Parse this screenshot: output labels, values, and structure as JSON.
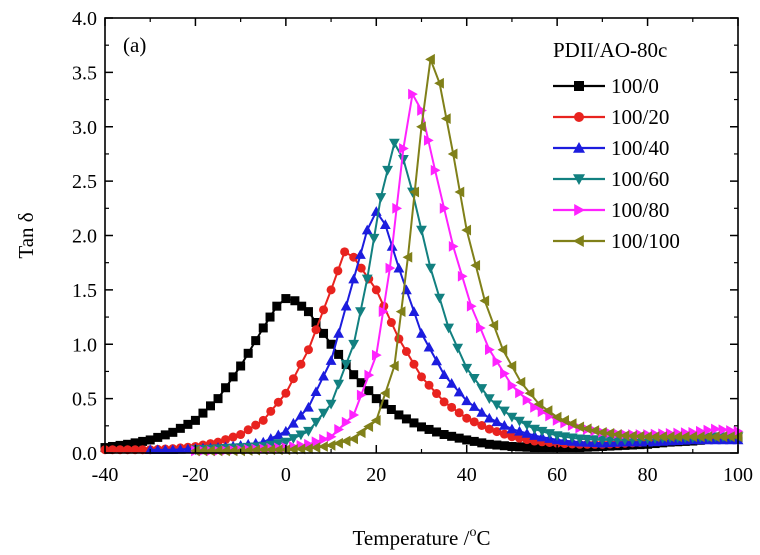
{
  "chart_data": {
    "type": "line",
    "panel_label": "(a)",
    "xlabel_main": "Temperature /",
    "xlabel_sup": "o",
    "xlabel_unit": "C",
    "ylabel": "Tan δ",
    "xlim": [
      -40,
      100
    ],
    "ylim": [
      0,
      4.0
    ],
    "x_ticks": [
      -40,
      -20,
      0,
      20,
      40,
      60,
      80,
      100
    ],
    "x_tick_labels": [
      "-40",
      "-20",
      "0",
      "20",
      "40",
      "60",
      "80",
      "100"
    ],
    "y_ticks": [
      0,
      0.5,
      1.0,
      1.5,
      2.0,
      2.5,
      3.0,
      3.5,
      4.0
    ],
    "y_tick_labels": [
      "0.0",
      "0.5",
      "1.0",
      "1.5",
      "2.0",
      "2.5",
      "3.0",
      "3.5",
      "4.0"
    ],
    "grid": false,
    "legend": {
      "title": "PDII/AO-80c",
      "position": "top-right"
    },
    "series": [
      {
        "name": "100/0",
        "color": "#000000",
        "marker": "square",
        "points": [
          [
            -40,
            0.05
          ],
          [
            -35,
            0.08
          ],
          [
            -30,
            0.12
          ],
          [
            -25,
            0.19
          ],
          [
            -20,
            0.3
          ],
          [
            -15,
            0.5
          ],
          [
            -10,
            0.8
          ],
          [
            -5,
            1.15
          ],
          [
            -2,
            1.35
          ],
          [
            0,
            1.42
          ],
          [
            2,
            1.4
          ],
          [
            5,
            1.3
          ],
          [
            10,
            1.0
          ],
          [
            15,
            0.72
          ],
          [
            20,
            0.5
          ],
          [
            25,
            0.35
          ],
          [
            30,
            0.24
          ],
          [
            35,
            0.17
          ],
          [
            40,
            0.12
          ],
          [
            45,
            0.08
          ],
          [
            50,
            0.06
          ],
          [
            55,
            0.05
          ],
          [
            60,
            0.05
          ],
          [
            65,
            0.05
          ],
          [
            70,
            0.06
          ],
          [
            75,
            0.07
          ],
          [
            80,
            0.08
          ],
          [
            85,
            0.1
          ],
          [
            90,
            0.11
          ],
          [
            95,
            0.13
          ],
          [
            100,
            0.14
          ]
        ]
      },
      {
        "name": "100/20",
        "color": "#e8231f",
        "marker": "circle",
        "points": [
          [
            -40,
            0.03
          ],
          [
            -35,
            0.03
          ],
          [
            -30,
            0.03
          ],
          [
            -25,
            0.04
          ],
          [
            -20,
            0.06
          ],
          [
            -15,
            0.1
          ],
          [
            -10,
            0.17
          ],
          [
            -5,
            0.3
          ],
          [
            0,
            0.55
          ],
          [
            5,
            0.95
          ],
          [
            10,
            1.5
          ],
          [
            13,
            1.85
          ],
          [
            15,
            1.8
          ],
          [
            20,
            1.5
          ],
          [
            25,
            1.05
          ],
          [
            30,
            0.7
          ],
          [
            35,
            0.47
          ],
          [
            40,
            0.32
          ],
          [
            45,
            0.22
          ],
          [
            50,
            0.15
          ],
          [
            55,
            0.11
          ],
          [
            60,
            0.09
          ],
          [
            65,
            0.08
          ],
          [
            70,
            0.08
          ],
          [
            75,
            0.09
          ],
          [
            80,
            0.1
          ],
          [
            85,
            0.12
          ],
          [
            90,
            0.13
          ],
          [
            95,
            0.14
          ],
          [
            100,
            0.16
          ]
        ]
      },
      {
        "name": "100/40",
        "color": "#1c1cde",
        "marker": "triangle-up",
        "points": [
          [
            -30,
            0.03
          ],
          [
            -25,
            0.03
          ],
          [
            -20,
            0.04
          ],
          [
            -15,
            0.05
          ],
          [
            -10,
            0.07
          ],
          [
            -5,
            0.1
          ],
          [
            0,
            0.2
          ],
          [
            5,
            0.42
          ],
          [
            10,
            0.85
          ],
          [
            15,
            1.6
          ],
          [
            18,
            2.05
          ],
          [
            20,
            2.22
          ],
          [
            22,
            2.1
          ],
          [
            25,
            1.7
          ],
          [
            30,
            1.1
          ],
          [
            35,
            0.72
          ],
          [
            40,
            0.48
          ],
          [
            45,
            0.32
          ],
          [
            50,
            0.22
          ],
          [
            55,
            0.16
          ],
          [
            60,
            0.12
          ],
          [
            65,
            0.1
          ],
          [
            70,
            0.09
          ],
          [
            75,
            0.1
          ],
          [
            80,
            0.1
          ],
          [
            85,
            0.11
          ],
          [
            90,
            0.12
          ],
          [
            95,
            0.12
          ],
          [
            100,
            0.12
          ]
        ]
      },
      {
        "name": "100/60",
        "color": "#128080",
        "marker": "triangle-down",
        "points": [
          [
            -20,
            0.03
          ],
          [
            -15,
            0.04
          ],
          [
            -10,
            0.05
          ],
          [
            -5,
            0.06
          ],
          [
            0,
            0.1
          ],
          [
            5,
            0.2
          ],
          [
            10,
            0.45
          ],
          [
            15,
            1.0
          ],
          [
            18,
            1.6
          ],
          [
            21,
            2.35
          ],
          [
            24,
            2.85
          ],
          [
            26,
            2.7
          ],
          [
            28,
            2.4
          ],
          [
            32,
            1.7
          ],
          [
            36,
            1.15
          ],
          [
            40,
            0.78
          ],
          [
            45,
            0.5
          ],
          [
            50,
            0.33
          ],
          [
            55,
            0.22
          ],
          [
            60,
            0.16
          ],
          [
            65,
            0.13
          ],
          [
            70,
            0.12
          ],
          [
            75,
            0.12
          ],
          [
            80,
            0.13
          ],
          [
            85,
            0.14
          ],
          [
            90,
            0.14
          ],
          [
            95,
            0.15
          ],
          [
            100,
            0.15
          ]
        ]
      },
      {
        "name": "100/80",
        "color": "#ff22ff",
        "marker": "triangle-right",
        "points": [
          [
            -20,
            0.02
          ],
          [
            -15,
            0.02
          ],
          [
            -10,
            0.03
          ],
          [
            -5,
            0.04
          ],
          [
            0,
            0.05
          ],
          [
            5,
            0.08
          ],
          [
            10,
            0.15
          ],
          [
            15,
            0.35
          ],
          [
            20,
            0.9
          ],
          [
            23,
            1.7
          ],
          [
            26,
            2.8
          ],
          [
            28,
            3.3
          ],
          [
            30,
            3.15
          ],
          [
            33,
            2.6
          ],
          [
            37,
            1.9
          ],
          [
            41,
            1.35
          ],
          [
            45,
            0.95
          ],
          [
            50,
            0.62
          ],
          [
            55,
            0.42
          ],
          [
            60,
            0.3
          ],
          [
            65,
            0.23
          ],
          [
            70,
            0.19
          ],
          [
            75,
            0.17
          ],
          [
            80,
            0.17
          ],
          [
            85,
            0.18
          ],
          [
            90,
            0.19
          ],
          [
            95,
            0.22
          ],
          [
            100,
            0.2
          ]
        ]
      },
      {
        "name": "100/100",
        "color": "#808019",
        "marker": "triangle-left",
        "points": [
          [
            -20,
            0.02
          ],
          [
            -15,
            0.02
          ],
          [
            -10,
            0.02
          ],
          [
            -5,
            0.03
          ],
          [
            0,
            0.03
          ],
          [
            5,
            0.04
          ],
          [
            10,
            0.07
          ],
          [
            15,
            0.13
          ],
          [
            20,
            0.3
          ],
          [
            24,
            0.8
          ],
          [
            27,
            1.8
          ],
          [
            30,
            3.0
          ],
          [
            32,
            3.62
          ],
          [
            34,
            3.4
          ],
          [
            37,
            2.75
          ],
          [
            40,
            2.05
          ],
          [
            44,
            1.4
          ],
          [
            48,
            0.95
          ],
          [
            52,
            0.65
          ],
          [
            56,
            0.45
          ],
          [
            60,
            0.33
          ],
          [
            65,
            0.24
          ],
          [
            70,
            0.19
          ],
          [
            75,
            0.16
          ],
          [
            80,
            0.15
          ],
          [
            85,
            0.15
          ],
          [
            90,
            0.15
          ],
          [
            95,
            0.15
          ],
          [
            100,
            0.15
          ]
        ]
      }
    ]
  }
}
